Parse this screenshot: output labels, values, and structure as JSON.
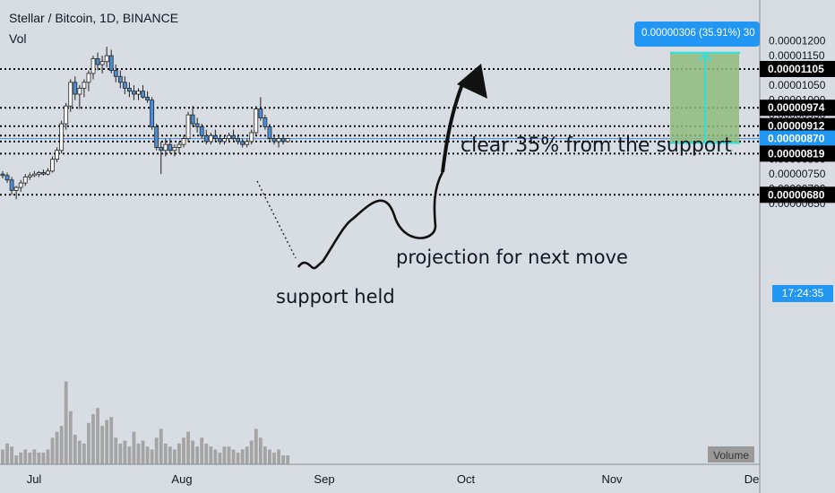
{
  "header": {
    "title": "Stellar / Bitcoin, 1D, BINANCE",
    "volume_label": "Vol"
  },
  "annotations": {
    "target": "clear 35% from the support",
    "projection": "projection for next move",
    "support": "support held"
  },
  "measure_label": "0.00000306 (35.91%) 30",
  "countdown": "17:24:35",
  "volume_tag": "Volume",
  "colors": {
    "up": "#ffffff",
    "down": "#4a90d9",
    "volume": "#a4a4a4",
    "box": "#8fbc7c",
    "cyan": "#2ce0e0",
    "tag": "#000000",
    "accent": "#2196f3"
  },
  "chart_data": {
    "type": "candlestick",
    "title": "Stellar / Bitcoin, 1D, BINANCE",
    "ylim": [
      6.2e-06,
      1.24e-05
    ],
    "y_ticks": [
      "0.00001200",
      "0.00001150",
      "0.00001050",
      "0.00001000",
      "0.00000950",
      "0.00000800",
      "0.00000750",
      "0.00000700",
      "0.00000650"
    ],
    "x_ticks": [
      "Jul",
      "Aug",
      "Sep",
      "Oct",
      "Nov",
      "De"
    ],
    "price_levels": [
      {
        "label": "0.00001105",
        "value": 1.105e-05
      },
      {
        "label": "0.00000974",
        "value": 9.74e-06
      },
      {
        "label": "0.00000912",
        "value": 9.12e-06
      },
      {
        "label": "0.00000870",
        "value": 8.7e-06
      },
      {
        "label": "0.00000819",
        "value": 8.19e-06
      },
      {
        "label": "0.00000680",
        "value": 6.8e-06
      }
    ],
    "dotted_levels": [
      1.105e-05,
      9.74e-06,
      9.12e-06,
      8.8e-06,
      8.6e-06,
      8.19e-06,
      6.8e-06
    ],
    "target_zone": {
      "low": 8.55e-06,
      "high": 1.16e-05
    },
    "ohlc": [
      [
        7.5,
        7.6,
        7.35,
        7.45
      ],
      [
        7.45,
        7.55,
        7.2,
        7.3
      ],
      [
        7.3,
        7.4,
        6.8,
        6.95
      ],
      [
        6.95,
        7.1,
        6.65,
        7.05
      ],
      [
        7.05,
        7.3,
        6.9,
        7.2
      ],
      [
        7.2,
        7.5,
        7.1,
        7.4
      ],
      [
        7.4,
        7.55,
        7.3,
        7.45
      ],
      [
        7.45,
        7.6,
        7.4,
        7.5
      ],
      [
        7.5,
        7.6,
        7.4,
        7.55
      ],
      [
        7.55,
        7.65,
        7.45,
        7.5
      ],
      [
        7.5,
        7.7,
        7.45,
        7.6
      ],
      [
        7.6,
        8.1,
        7.55,
        8.0
      ],
      [
        8.0,
        8.4,
        7.9,
        8.3
      ],
      [
        8.3,
        9.3,
        8.2,
        9.2
      ],
      [
        9.2,
        9.9,
        9.0,
        9.8
      ],
      [
        9.8,
        10.7,
        9.6,
        10.6
      ],
      [
        10.6,
        10.8,
        10.0,
        10.2
      ],
      [
        10.2,
        10.5,
        9.7,
        10.4
      ],
      [
        10.4,
        10.7,
        10.1,
        10.6
      ],
      [
        10.6,
        11.0,
        10.3,
        10.9
      ],
      [
        10.9,
        11.5,
        10.7,
        11.4
      ],
      [
        11.4,
        11.6,
        11.0,
        11.2
      ],
      [
        11.2,
        11.5,
        10.9,
        11.3
      ],
      [
        11.3,
        11.8,
        11.1,
        11.5
      ],
      [
        11.5,
        11.7,
        10.9,
        11.0
      ],
      [
        11.0,
        11.2,
        10.6,
        10.8
      ],
      [
        10.8,
        11.0,
        10.4,
        10.6
      ],
      [
        10.6,
        10.8,
        10.2,
        10.4
      ],
      [
        10.4,
        10.6,
        10.1,
        10.3
      ],
      [
        10.3,
        10.5,
        10.0,
        10.2
      ],
      [
        10.2,
        10.4,
        10.0,
        10.3
      ],
      [
        10.3,
        10.5,
        10.05,
        10.1
      ],
      [
        10.1,
        10.3,
        9.9,
        10.0
      ],
      [
        10.0,
        10.1,
        9.0,
        9.1
      ],
      [
        9.1,
        9.2,
        8.3,
        8.4
      ],
      [
        8.4,
        8.6,
        7.5,
        8.3
      ],
      [
        8.3,
        8.7,
        8.1,
        8.5
      ],
      [
        8.5,
        8.7,
        8.2,
        8.3
      ],
      [
        8.3,
        8.5,
        8.1,
        8.4
      ],
      [
        8.4,
        8.6,
        8.2,
        8.5
      ],
      [
        8.5,
        8.8,
        8.4,
        8.7
      ],
      [
        8.7,
        9.6,
        8.6,
        9.5
      ],
      [
        9.5,
        9.8,
        9.1,
        9.2
      ],
      [
        9.2,
        9.4,
        8.9,
        9.1
      ],
      [
        9.1,
        9.2,
        8.7,
        8.8
      ],
      [
        8.8,
        9.0,
        8.5,
        8.6
      ],
      [
        8.6,
        8.9,
        8.5,
        8.8
      ],
      [
        8.8,
        9.0,
        8.6,
        8.7
      ],
      [
        8.7,
        8.8,
        8.5,
        8.6
      ],
      [
        8.6,
        8.8,
        8.5,
        8.7
      ],
      [
        8.7,
        8.9,
        8.6,
        8.8
      ],
      [
        8.8,
        9.0,
        8.6,
        8.7
      ],
      [
        8.7,
        8.8,
        8.5,
        8.6
      ],
      [
        8.6,
        8.7,
        8.4,
        8.5
      ],
      [
        8.5,
        8.7,
        8.4,
        8.6
      ],
      [
        8.6,
        9.0,
        8.5,
        8.9
      ],
      [
        8.9,
        9.8,
        8.8,
        9.7
      ],
      [
        9.7,
        10.1,
        9.3,
        9.4
      ],
      [
        9.4,
        9.5,
        9.0,
        9.1
      ],
      [
        9.1,
        9.2,
        8.6,
        8.7
      ],
      [
        8.7,
        8.8,
        8.5,
        8.6
      ],
      [
        8.6,
        8.8,
        8.4,
        8.7
      ],
      [
        8.7,
        8.8,
        8.5,
        8.6
      ],
      [
        8.6,
        8.7,
        8.6,
        8.7
      ]
    ],
    "volume": [
      5,
      7,
      6,
      3,
      4,
      5,
      4,
      5,
      4,
      4,
      5,
      9,
      11,
      13,
      28,
      18,
      10,
      8,
      7,
      14,
      17,
      19,
      13,
      15,
      16,
      9,
      7,
      8,
      6,
      11,
      7,
      8,
      6,
      5,
      9,
      12,
      7,
      6,
      5,
      7,
      9,
      11,
      8,
      6,
      9,
      7,
      6,
      5,
      4,
      6,
      6,
      5,
      4,
      5,
      6,
      8,
      12,
      9,
      6,
      5,
      4,
      5,
      3,
      3
    ]
  }
}
